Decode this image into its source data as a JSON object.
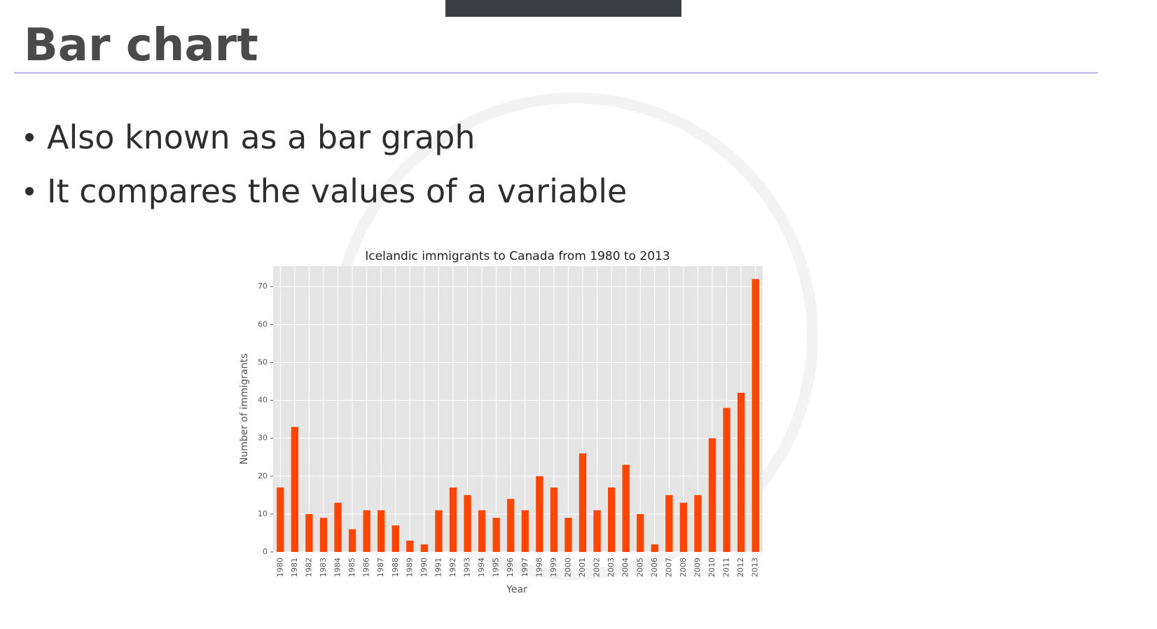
{
  "slide": {
    "title": "Bar chart",
    "bullets": [
      "Also known as a bar graph",
      "It compares the values of a variable"
    ]
  },
  "chart_data": {
    "type": "bar",
    "title": "Icelandic immigrants to Canada from 1980 to 2013",
    "x_label": "Year",
    "y_label": "Number of immigrants",
    "categories": [
      "1980",
      "1981",
      "1982",
      "1983",
      "1984",
      "1985",
      "1986",
      "1987",
      "1988",
      "1989",
      "1990",
      "1991",
      "1992",
      "1993",
      "1994",
      "1995",
      "1996",
      "1997",
      "1998",
      "1999",
      "2000",
      "2001",
      "2002",
      "2003",
      "2004",
      "2005",
      "2006",
      "2007",
      "2008",
      "2009",
      "2010",
      "2011",
      "2012",
      "2013"
    ],
    "values": [
      17,
      33,
      10,
      9,
      13,
      6,
      11,
      11,
      7,
      3,
      2,
      11,
      17,
      15,
      11,
      9,
      14,
      11,
      20,
      17,
      9,
      26,
      11,
      17,
      23,
      10,
      2,
      15,
      13,
      15,
      30,
      38,
      42,
      72
    ],
    "color": "#ff4500",
    "ylim": [
      0,
      75.4
    ],
    "yticks": [
      0,
      10,
      20,
      30,
      40,
      50,
      60,
      70
    ],
    "grid": true
  }
}
